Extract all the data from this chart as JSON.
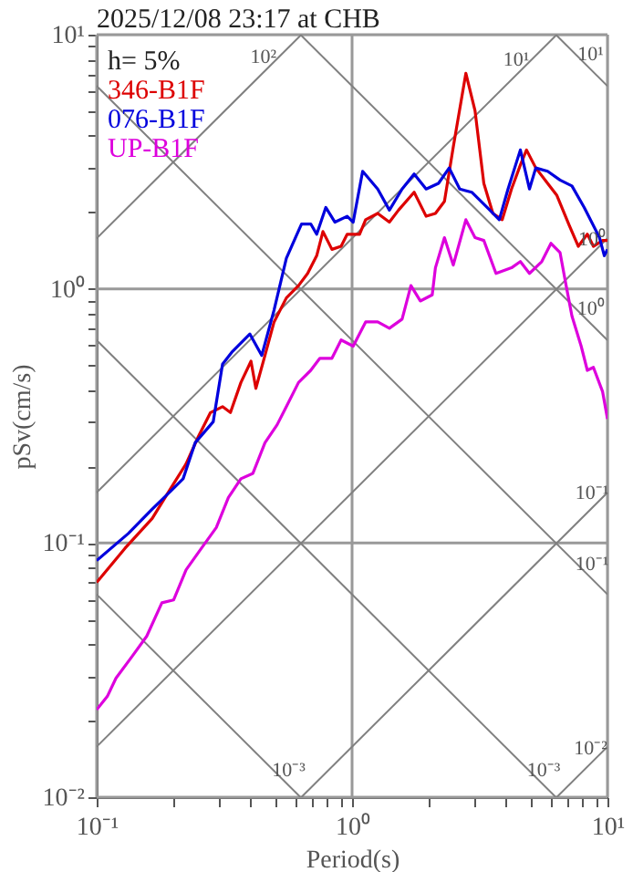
{
  "chart_data": {
    "type": "line",
    "title": "2025/12/08 23:17 at CHB",
    "xlabel": "Period(s)",
    "ylabel": "pSv(cm/s)",
    "legend_title": "h= 5%",
    "legend": "top left",
    "log": "xy",
    "grid": true,
    "marker": "none",
    "line_style": "solid",
    "xlim": [
      0.1,
      10
    ],
    "ylim": [
      0.01,
      10
    ],
    "xticks": [
      {
        "value": 0.1,
        "label": "10⁻¹"
      },
      {
        "value": 0.2,
        "label": null
      },
      {
        "value": 0.3,
        "label": null
      },
      {
        "value": 0.4,
        "label": null
      },
      {
        "value": 0.5,
        "label": null
      },
      {
        "value": 0.6,
        "label": null
      },
      {
        "value": 0.7,
        "label": null
      },
      {
        "value": 0.8,
        "label": null
      },
      {
        "value": 0.9,
        "label": null
      },
      {
        "value": 1,
        "label": "10⁰"
      },
      {
        "value": 2,
        "label": null
      },
      {
        "value": 3,
        "label": null
      },
      {
        "value": 4,
        "label": null
      },
      {
        "value": 5,
        "label": null
      },
      {
        "value": 6,
        "label": null
      },
      {
        "value": 7,
        "label": null
      },
      {
        "value": 8,
        "label": null
      },
      {
        "value": 9,
        "label": null
      },
      {
        "value": 10,
        "label": "10¹"
      }
    ],
    "yticks": [
      {
        "value": 0.01,
        "label": "10⁻²"
      },
      {
        "value": 0.02,
        "label": null
      },
      {
        "value": 0.03,
        "label": null
      },
      {
        "value": 0.04,
        "label": null
      },
      {
        "value": 0.05,
        "label": null
      },
      {
        "value": 0.06,
        "label": null
      },
      {
        "value": 0.07,
        "label": null
      },
      {
        "value": 0.08,
        "label": null
      },
      {
        "value": 0.09,
        "label": null
      },
      {
        "value": 0.1,
        "label": "10⁻¹"
      },
      {
        "value": 0.2,
        "label": null
      },
      {
        "value": 0.3,
        "label": null
      },
      {
        "value": 0.4,
        "label": null
      },
      {
        "value": 0.5,
        "label": null
      },
      {
        "value": 0.6,
        "label": null
      },
      {
        "value": 0.7,
        "label": null
      },
      {
        "value": 0.8,
        "label": null
      },
      {
        "value": 0.9,
        "label": null
      },
      {
        "value": 1,
        "label": "10⁰"
      },
      {
        "value": 2,
        "label": null
      },
      {
        "value": 3,
        "label": null
      },
      {
        "value": 4,
        "label": null
      },
      {
        "value": 5,
        "label": null
      },
      {
        "value": 6,
        "label": null
      },
      {
        "value": 7,
        "label": null
      },
      {
        "value": 8,
        "label": null
      },
      {
        "value": 9,
        "label": null
      },
      {
        "value": 10,
        "label": "10¹"
      }
    ],
    "series": [
      {
        "color": "#808080",
        "x": [
          0.1,
          0.633
        ],
        "values": [
          1.58,
          10
        ]
      },
      {
        "color": "#808080",
        "x": [
          0.1,
          6.33
        ],
        "values": [
          0.158,
          10
        ]
      },
      {
        "color": "#808080",
        "x": [
          0.1,
          10
        ],
        "values": [
          0.0158,
          1.58
        ]
      },
      {
        "color": "#808080",
        "x": [
          0.633,
          10
        ],
        "values": [
          0.01,
          0.158
        ]
      },
      {
        "color": "#808080",
        "x": [
          6.33,
          10
        ],
        "values": [
          0.01,
          0.0158
        ]
      },
      {
        "color": "#808080",
        "x": [
          6.28,
          10
        ],
        "values": [
          10,
          6.28
        ]
      },
      {
        "color": "#808080",
        "x": [
          0.628,
          10
        ],
        "values": [
          10,
          0.628
        ]
      },
      {
        "color": "#808080",
        "x": [
          0.1,
          10
        ],
        "values": [
          6.28,
          0.0628
        ]
      },
      {
        "color": "#808080",
        "x": [
          0.1,
          6.28
        ],
        "values": [
          0.628,
          0.01
        ]
      },
      {
        "color": "#808080",
        "x": [
          0.1,
          0.628
        ],
        "values": [
          0.0628,
          0.01
        ]
      },
      {
        "name": "346-B1F",
        "color": "#dd0000",
        "x": [
          0.1,
          0.129,
          0.165,
          0.195,
          0.224,
          0.25,
          0.279,
          0.311,
          0.334,
          0.367,
          0.402,
          0.42,
          0.456,
          0.495,
          0.553,
          0.617,
          0.67,
          0.727,
          0.769,
          0.834,
          0.906,
          0.957,
          1.07,
          1.13,
          1.26,
          1.4,
          1.52,
          1.75,
          1.95,
          2.12,
          2.3,
          2.49,
          2.79,
          3.03,
          3.28,
          3.56,
          3.87,
          4.21,
          4.56,
          4.82,
          5.24,
          5.83,
          6.34,
          7.08,
          7.69,
          8.34,
          8.81,
          9.57,
          10
        ],
        "values": [
          0.07,
          0.0953,
          0.125,
          0.164,
          0.205,
          0.262,
          0.326,
          0.344,
          0.326,
          0.428,
          0.519,
          0.406,
          0.547,
          0.741,
          0.921,
          1.03,
          1.15,
          1.35,
          1.68,
          1.43,
          1.47,
          1.64,
          1.64,
          1.87,
          1.98,
          1.83,
          2.04,
          2.4,
          1.93,
          1.98,
          2.21,
          3.61,
          7.05,
          5.02,
          2.6,
          1.98,
          1.87,
          2.47,
          3.07,
          3.52,
          2.99,
          2.6,
          2.33,
          1.78,
          1.47,
          1.64,
          1.47,
          1.55,
          1.55
        ]
      },
      {
        "name": "076-B1F",
        "color": "#0000dd",
        "x": [
          0.1,
          0.133,
          0.165,
          0.195,
          0.218,
          0.243,
          0.286,
          0.311,
          0.338,
          0.398,
          0.443,
          0.495,
          0.553,
          0.634,
          0.689,
          0.727,
          0.789,
          0.857,
          0.957,
          1.01,
          1.1,
          1.26,
          1.4,
          1.57,
          1.75,
          1.95,
          2.18,
          2.4,
          2.64,
          2.94,
          3.38,
          3.77,
          4.08,
          4.56,
          4.95,
          5.24,
          5.83,
          6.52,
          7.26,
          8.11,
          9.31,
          9.72,
          10
        ],
        "values": [
          0.0853,
          0.109,
          0.136,
          0.16,
          0.179,
          0.248,
          0.3,
          0.505,
          0.563,
          0.664,
          0.547,
          0.826,
          1.32,
          1.8,
          1.8,
          1.64,
          2.09,
          1.83,
          1.93,
          1.83,
          2.9,
          2.47,
          2.04,
          2.47,
          2.83,
          2.47,
          2.6,
          2.99,
          2.47,
          2.4,
          2.09,
          1.87,
          2.47,
          3.52,
          2.47,
          2.99,
          2.9,
          2.68,
          2.54,
          2.09,
          1.59,
          1.35,
          1.43
        ]
      },
      {
        "name": "UP-B1F",
        "color": "#dd00dd",
        "x": [
          0.1,
          0.11,
          0.119,
          0.137,
          0.157,
          0.18,
          0.2,
          0.224,
          0.257,
          0.294,
          0.328,
          0.367,
          0.409,
          0.456,
          0.509,
          0.553,
          0.617,
          0.689,
          0.748,
          0.834,
          0.906,
          1.01,
          1.13,
          1.26,
          1.4,
          1.57,
          1.7,
          1.85,
          2.06,
          2.12,
          2.3,
          2.49,
          2.79,
          3.03,
          3.28,
          3.66,
          4.21,
          4.56,
          4.95,
          5.53,
          6.01,
          6.52,
          6.89,
          7.26,
          7.89,
          8.34,
          8.81,
          9.57,
          10
        ],
        "values": [
          0.0221,
          0.0249,
          0.0294,
          0.0356,
          0.043,
          0.0582,
          0.0597,
          0.0785,
          0.0953,
          0.115,
          0.151,
          0.179,
          0.188,
          0.248,
          0.292,
          0.344,
          0.428,
          0.478,
          0.533,
          0.533,
          0.629,
          0.595,
          0.741,
          0.741,
          0.7,
          0.76,
          1.03,
          0.896,
          0.947,
          1.21,
          1.59,
          1.24,
          1.87,
          1.59,
          1.55,
          1.15,
          1.21,
          1.28,
          1.15,
          1.28,
          1.51,
          1.39,
          1.03,
          0.782,
          0.595,
          0.478,
          0.491,
          0.394,
          0.308
        ]
      }
    ],
    "annotations": [
      {
        "text": "10²",
        "x": 0.45,
        "y": 7.11
      },
      {
        "text": "10¹",
        "x": 4.4,
        "y": 6.95
      },
      {
        "text": "10¹",
        "x": 8.6,
        "y": 7.3
      },
      {
        "text": "10⁰",
        "x": 8.7,
        "y": 1.37
      },
      {
        "text": "10⁰",
        "x": 8.6,
        "y": 0.73
      },
      {
        "text": "10⁻¹",
        "x": 8.7,
        "y": 0.137
      },
      {
        "text": "10⁻¹",
        "x": 8.7,
        "y": 0.0722
      },
      {
        "text": "10⁻³",
        "x": 0.565,
        "y": 0.0111
      },
      {
        "text": "10⁻³",
        "x": 5.63,
        "y": 0.01115
      },
      {
        "text": "10⁻²",
        "x": 8.6,
        "y": 0.0136
      }
    ]
  }
}
